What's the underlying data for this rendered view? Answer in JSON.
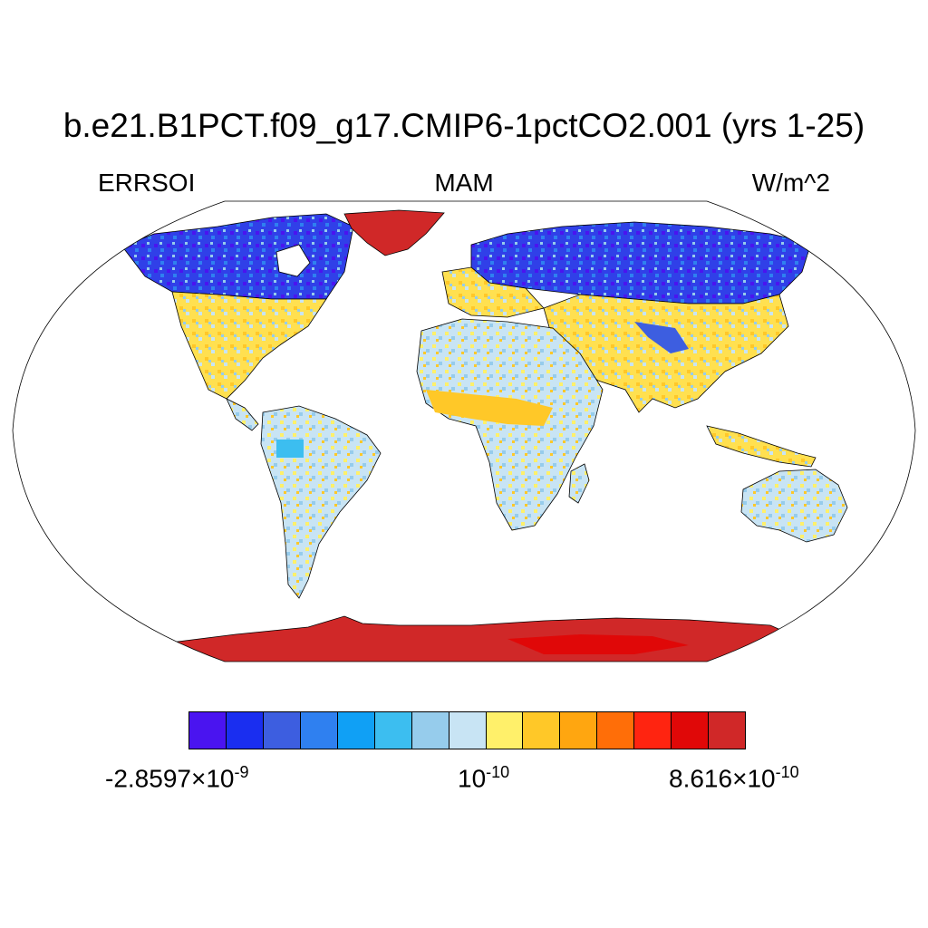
{
  "title": "b.e21.B1PCT.f09_g17.CMIP6-1pctCO2.001 (yrs 1-25)",
  "left_label": "ERRSOI",
  "center_label": "MAM",
  "right_label": "W/m^2",
  "colorbar": {
    "colors": [
      "#4a14f0",
      "#1a2ef0",
      "#3d5ee0",
      "#2f80f0",
      "#10a0f5",
      "#3cbef0",
      "#96ccec",
      "#c8e4f4",
      "#fff06a",
      "#ffc828",
      "#ffa610",
      "#ff6e08",
      "#ff2410",
      "#e00808",
      "#d02828"
    ],
    "labels": {
      "min": {
        "mantissa": "-2.8597",
        "times": "×",
        "base": "10",
        "exponent": "-9"
      },
      "mid": {
        "base": "10",
        "exponent": "-10"
      },
      "max": {
        "mantissa": "8.616",
        "times": "×",
        "base": "10",
        "exponent": "-10"
      }
    }
  },
  "map": {
    "projection": "Robinson",
    "regions": [
      {
        "name": "Greenland",
        "level": "max"
      },
      {
        "name": "Antarctica",
        "level": "max"
      },
      {
        "name": "Canada",
        "level": "strong negative"
      },
      {
        "name": "Northern Eurasia",
        "level": "strong negative"
      },
      {
        "name": "Tropics",
        "level": "near zero"
      }
    ]
  }
}
